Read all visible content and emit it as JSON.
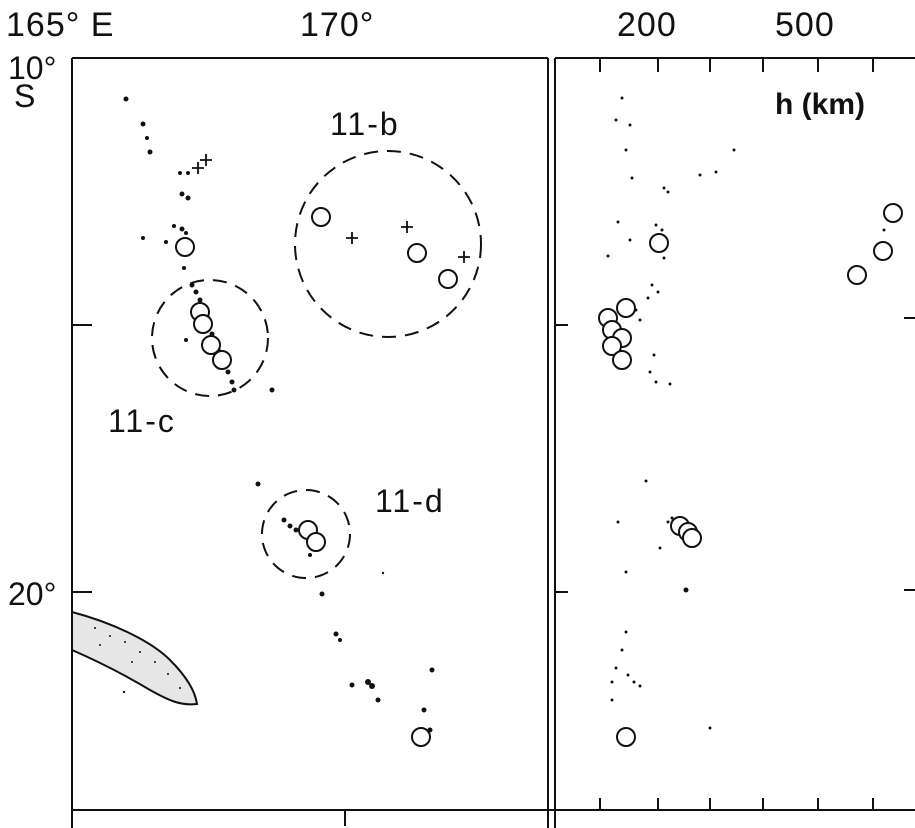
{
  "map": {
    "longitude_labels": [
      "165° E",
      "170°"
    ],
    "latitude_labels": [
      "10°",
      "S",
      "20°"
    ],
    "region_labels": [
      "11-b",
      "11-c",
      "11-d"
    ]
  },
  "depth_panel": {
    "tick_labels": [
      "200",
      "500"
    ],
    "axis_title": "h (km)"
  },
  "colors": {
    "ink": "#111111",
    "land_fill": "#e6e6e6"
  }
}
